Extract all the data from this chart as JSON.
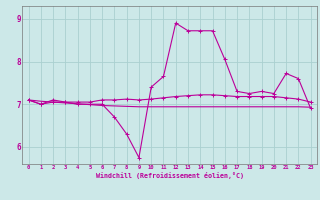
{
  "xlabel": "Windchill (Refroidissement éolien,°C)",
  "background_color": "#cce8e8",
  "grid_color": "#aad0d0",
  "line_color": "#bb0099",
  "x_hours": [
    0,
    1,
    2,
    3,
    4,
    5,
    6,
    7,
    8,
    9,
    10,
    11,
    12,
    13,
    14,
    15,
    16,
    17,
    18,
    19,
    20,
    21,
    22,
    23
  ],
  "windchill": [
    7.1,
    7.0,
    7.1,
    7.05,
    7.0,
    7.0,
    7.0,
    6.7,
    6.3,
    5.75,
    7.4,
    7.65,
    8.9,
    8.72,
    8.72,
    8.72,
    8.05,
    7.3,
    7.25,
    7.3,
    7.25,
    7.72,
    7.6,
    6.9
  ],
  "temp": [
    7.1,
    7.0,
    7.05,
    7.05,
    7.05,
    7.05,
    7.1,
    7.1,
    7.12,
    7.1,
    7.12,
    7.15,
    7.18,
    7.2,
    7.22,
    7.22,
    7.2,
    7.18,
    7.18,
    7.18,
    7.18,
    7.15,
    7.12,
    7.05
  ],
  "trend": [
    7.1,
    7.07,
    7.05,
    7.03,
    7.01,
    6.99,
    6.97,
    6.96,
    6.95,
    6.94,
    6.94,
    6.94,
    6.94,
    6.94,
    6.94,
    6.94,
    6.94,
    6.94,
    6.94,
    6.94,
    6.94,
    6.94,
    6.94,
    6.93
  ],
  "ylim": [
    5.6,
    9.3
  ],
  "yticks": [
    6,
    7,
    8,
    9
  ],
  "xticks": [
    0,
    1,
    2,
    3,
    4,
    5,
    6,
    7,
    8,
    9,
    10,
    11,
    12,
    13,
    14,
    15,
    16,
    17,
    18,
    19,
    20,
    21,
    22,
    23
  ]
}
